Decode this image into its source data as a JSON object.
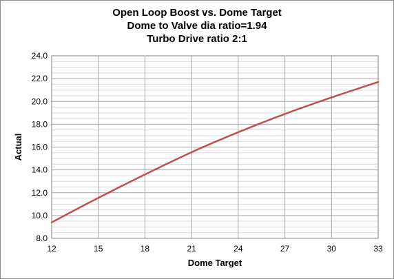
{
  "chart_data": {
    "type": "line",
    "title_lines": [
      "Open Loop Boost vs. Dome Target",
      "Dome to Valve dia ratio=1.94",
      "Turbo Drive ratio 2:1"
    ],
    "xlabel": "Dome Target",
    "ylabel": "Actual",
    "xlim": [
      12,
      33
    ],
    "ylim": [
      8.0,
      24.0
    ],
    "x_ticks": [
      "12",
      "15",
      "18",
      "21",
      "24",
      "27",
      "30",
      "33"
    ],
    "y_ticks": [
      "8.0",
      "10.0",
      "12.0",
      "14.0",
      "16.0",
      "18.0",
      "20.0",
      "22.0",
      "24.0"
    ],
    "grid": true,
    "legend": "none",
    "series": [
      {
        "color": "#c0504d",
        "x": [
          12,
          15,
          18,
          21,
          24,
          27,
          30,
          33
        ],
        "y": [
          9.4,
          11.55,
          13.6,
          15.55,
          17.3,
          18.9,
          20.35,
          21.7
        ]
      }
    ]
  }
}
